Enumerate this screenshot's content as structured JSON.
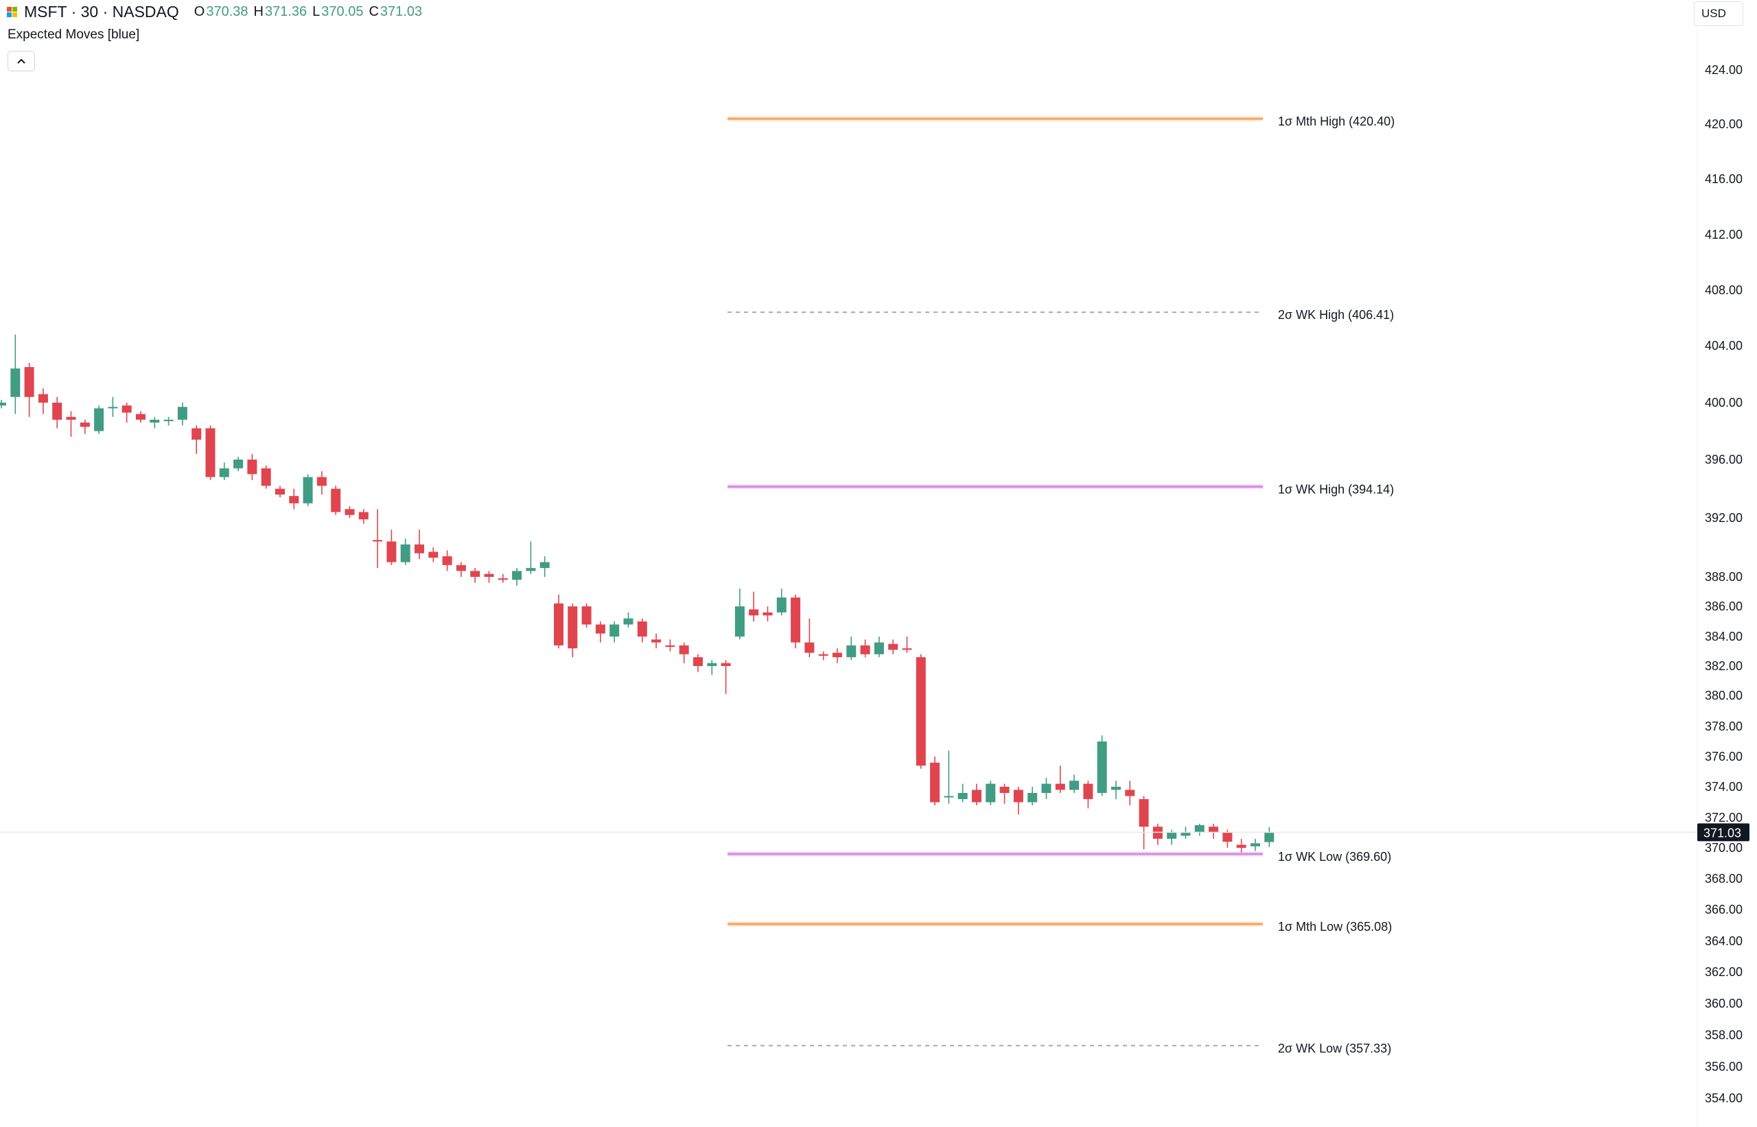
{
  "header": {
    "symbol": "MSFT · 30 · NASDAQ",
    "o_label": "O",
    "o_value": "370.38",
    "h_label": "H",
    "h_value": "371.36",
    "l_label": "L",
    "l_value": "370.05",
    "c_label": "C",
    "c_value": "371.03",
    "logo_icon": "microsoft-logo-icon"
  },
  "indicator": {
    "label": "Expected Moves [blue]",
    "collapse_icon": "chevron-up-icon"
  },
  "currency": "USD",
  "colors": {
    "up": "#26a69a",
    "up_body": "#419c84",
    "down": "#e0454f",
    "ohlc_value": "#419c84",
    "month_line": "#f7a35c",
    "week1_line": "#d58be0",
    "week2_line": "#a6a9b1",
    "price_tag_bg": "#131722",
    "axis_text": "#131722"
  },
  "chart_data": {
    "type": "candlestick",
    "last_price": 371.03,
    "ylim": [
      353.2,
      426.9
    ],
    "y_ticks": [
      424,
      420,
      416,
      412,
      408,
      404,
      400,
      396,
      392,
      388,
      386,
      384,
      382,
      380,
      378,
      376,
      374,
      372,
      370,
      368,
      366,
      364,
      362,
      360,
      358,
      356,
      354
    ],
    "levels": [
      {
        "label": "1σ Mth High (420.40)",
        "value": 420.4,
        "style": "month"
      },
      {
        "label": "2σ WK High (406.41)",
        "value": 406.41,
        "style": "week2"
      },
      {
        "label": "1σ WK High (394.14)",
        "value": 394.14,
        "style": "week1"
      },
      {
        "label": "1σ WK Low (369.60)",
        "value": 369.6,
        "style": "week1"
      },
      {
        "label": "1σ Mth Low (365.08)",
        "value": 365.08,
        "style": "month"
      },
      {
        "label": "2σ WK Low (357.33)",
        "value": 357.33,
        "style": "week2"
      }
    ],
    "candles": [
      [
        399.8,
        400.0,
        399.6,
        400.2
      ],
      [
        400.4,
        402.4,
        399.2,
        404.8
      ],
      [
        402.5,
        400.4,
        399.0,
        402.8
      ],
      [
        400.6,
        400.0,
        399.2,
        401.0
      ],
      [
        400.0,
        398.8,
        398.2,
        400.4
      ],
      [
        399.0,
        398.8,
        397.6,
        399.4
      ],
      [
        398.6,
        398.3,
        397.8,
        398.8
      ],
      [
        398.0,
        399.6,
        397.8,
        399.8
      ],
      [
        399.6,
        399.7,
        399.0,
        400.4
      ],
      [
        399.8,
        399.3,
        398.6,
        400.0
      ],
      [
        399.2,
        398.8,
        398.6,
        399.4
      ],
      [
        398.6,
        398.8,
        398.2,
        399.0
      ],
      [
        398.7,
        398.8,
        398.4,
        399.0
      ],
      [
        398.8,
        399.7,
        398.4,
        400.0
      ],
      [
        398.2,
        397.4,
        396.4,
        398.4
      ],
      [
        398.2,
        394.8,
        394.6,
        398.4
      ],
      [
        394.8,
        395.4,
        394.6,
        395.8
      ],
      [
        395.4,
        396.0,
        395.2,
        396.2
      ],
      [
        396.0,
        395.0,
        394.6,
        396.4
      ],
      [
        395.4,
        394.2,
        394.0,
        395.6
      ],
      [
        394.0,
        393.6,
        393.4,
        394.2
      ],
      [
        393.5,
        393.0,
        392.6,
        394.0
      ],
      [
        393.0,
        394.8,
        392.8,
        395.0
      ],
      [
        394.8,
        394.2,
        393.6,
        395.2
      ],
      [
        394.0,
        392.4,
        392.2,
        394.2
      ],
      [
        392.6,
        392.2,
        392.0,
        392.8
      ],
      [
        392.4,
        391.9,
        391.6,
        392.6
      ],
      [
        390.5,
        390.4,
        388.6,
        392.6
      ],
      [
        390.4,
        389.0,
        388.8,
        391.2
      ],
      [
        389.0,
        390.2,
        388.8,
        390.6
      ],
      [
        390.2,
        389.6,
        389.2,
        391.2
      ],
      [
        389.7,
        389.3,
        389.0,
        390.0
      ],
      [
        389.4,
        388.8,
        388.4,
        389.8
      ],
      [
        388.8,
        388.4,
        388.0,
        389.0
      ],
      [
        388.4,
        388.0,
        387.6,
        388.6
      ],
      [
        388.2,
        388.0,
        387.6,
        388.4
      ],
      [
        387.9,
        387.8,
        387.6,
        388.2
      ],
      [
        387.8,
        388.4,
        387.4,
        388.6
      ],
      [
        388.4,
        388.6,
        388.2,
        390.4
      ],
      [
        388.6,
        389.0,
        388.0,
        389.4
      ],
      [
        386.2,
        383.4,
        383.2,
        386.8
      ],
      [
        386.0,
        383.2,
        382.6,
        386.2
      ],
      [
        386.0,
        384.8,
        384.6,
        386.2
      ],
      [
        384.8,
        384.2,
        383.6,
        385.0
      ],
      [
        384.0,
        384.8,
        383.6,
        385.0
      ],
      [
        384.8,
        385.2,
        384.6,
        385.6
      ],
      [
        385.0,
        384.0,
        383.6,
        385.2
      ],
      [
        383.8,
        383.6,
        383.2,
        384.2
      ],
      [
        383.4,
        383.3,
        383.0,
        383.8
      ],
      [
        383.4,
        382.8,
        382.2,
        383.6
      ],
      [
        382.6,
        382.0,
        381.6,
        382.8
      ],
      [
        382.0,
        382.2,
        381.4,
        382.4
      ],
      [
        382.2,
        382.0,
        380.1,
        382.4
      ],
      [
        384.0,
        386.0,
        383.8,
        387.2
      ],
      [
        385.8,
        385.4,
        385.0,
        387.0
      ],
      [
        385.6,
        385.4,
        385.0,
        386.0
      ],
      [
        385.6,
        386.6,
        385.4,
        387.2
      ],
      [
        386.6,
        383.6,
        383.2,
        386.8
      ],
      [
        383.6,
        382.9,
        382.6,
        385.2
      ],
      [
        382.8,
        382.7,
        382.4,
        383.0
      ],
      [
        382.9,
        382.6,
        382.2,
        383.2
      ],
      [
        382.6,
        383.4,
        382.4,
        384.0
      ],
      [
        383.4,
        382.8,
        382.6,
        383.8
      ],
      [
        382.8,
        383.6,
        382.6,
        384.0
      ],
      [
        383.5,
        383.1,
        382.8,
        383.8
      ],
      [
        383.2,
        383.1,
        382.9,
        384.0
      ],
      [
        382.6,
        375.4,
        375.2,
        382.8
      ],
      [
        375.6,
        373.0,
        372.8,
        376.0
      ],
      [
        373.4,
        373.4,
        372.9,
        376.4
      ],
      [
        373.2,
        373.6,
        373.0,
        374.2
      ],
      [
        373.8,
        373.0,
        372.8,
        374.2
      ],
      [
        373.0,
        374.2,
        372.8,
        374.4
      ],
      [
        374.0,
        373.6,
        372.9,
        374.2
      ],
      [
        373.8,
        373.0,
        372.2,
        374.0
      ],
      [
        373.0,
        373.6,
        372.8,
        374.0
      ],
      [
        373.6,
        374.2,
        373.2,
        374.6
      ],
      [
        374.2,
        373.8,
        373.6,
        375.4
      ],
      [
        373.8,
        374.4,
        373.6,
        374.8
      ],
      [
        374.2,
        373.2,
        372.6,
        374.4
      ],
      [
        373.6,
        377.0,
        373.4,
        377.4
      ],
      [
        373.8,
        374.0,
        373.2,
        374.4
      ],
      [
        373.8,
        373.4,
        372.8,
        374.4
      ],
      [
        373.2,
        371.4,
        369.9,
        373.4
      ],
      [
        371.4,
        370.6,
        370.2,
        371.6
      ],
      [
        370.6,
        371.0,
        370.2,
        371.2
      ],
      [
        370.8,
        371.0,
        370.6,
        371.4
      ],
      [
        371.0,
        371.5,
        370.8,
        371.6
      ],
      [
        371.4,
        371.0,
        370.6,
        371.6
      ],
      [
        371.0,
        370.4,
        370.0,
        371.2
      ],
      [
        370.2,
        370.0,
        369.7,
        370.6
      ],
      [
        370.1,
        370.3,
        369.8,
        370.6
      ],
      [
        370.38,
        371.03,
        370.05,
        371.36
      ]
    ]
  }
}
